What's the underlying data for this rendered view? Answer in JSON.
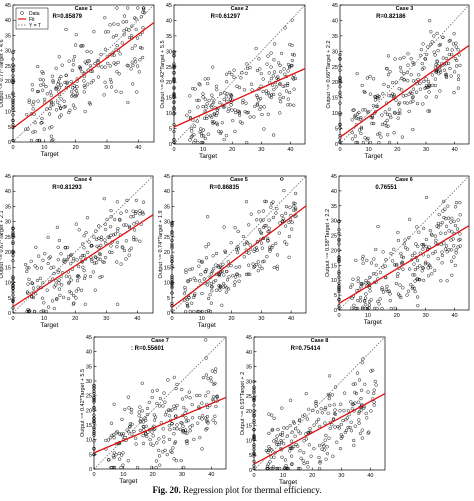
{
  "figure": {
    "caption_label": "Fig. 20.",
    "caption_text": "Regression plot for thermal efficiency.",
    "colors": {
      "data": "#000000",
      "fit": "#e01010",
      "identity": "#555555"
    }
  },
  "chart_data": [
    {
      "type": "scatter",
      "title": "Case 1",
      "r_label": "R=0.85879",
      "xlabel": "Target",
      "ylabel": "Output ~= 0.77*Target + 4.6",
      "xlim": [
        0,
        45
      ],
      "ylim": [
        0,
        45
      ],
      "xticks": [
        "0",
        "10",
        "20",
        "30",
        "40"
      ],
      "yticks": [
        "0",
        "5",
        "10",
        "15",
        "20",
        "25",
        "30",
        "35",
        "40",
        "45"
      ],
      "fit": {
        "slope": 0.77,
        "intercept": 4.6
      },
      "legend": {
        "position": "top-left",
        "entries": [
          "Data",
          "Fit",
          "Y = T"
        ]
      }
    },
    {
      "type": "scatter",
      "title": "Case 2",
      "r_label": "R=0.61297",
      "xlabel": "Target",
      "ylabel": "Output ~= 0.42*Target + 5.5",
      "xlim": [
        0,
        45
      ],
      "ylim": [
        0,
        45
      ],
      "xticks": [
        "0",
        "10",
        "20",
        "30",
        "40"
      ],
      "yticks": [
        "0",
        "5",
        "10",
        "15",
        "20",
        "25",
        "30",
        "35",
        "40",
        "45"
      ],
      "fit": {
        "slope": 0.42,
        "intercept": 5.5
      }
    },
    {
      "type": "scatter",
      "title": "Case 3",
      "r_label": "R=0.82186",
      "xlabel": "Target",
      "ylabel": "Output ~= 0.66*Target + 2.2",
      "xlim": [
        0,
        45
      ],
      "ylim": [
        0,
        45
      ],
      "xticks": [
        "0",
        "10",
        "20",
        "30",
        "40"
      ],
      "yticks": [
        "0",
        "5",
        "10",
        "15",
        "20",
        "25",
        "30",
        "35",
        "40",
        "45"
      ],
      "fit": {
        "slope": 0.66,
        "intercept": 2.2
      }
    },
    {
      "type": "scatter",
      "title": "Case 4",
      "r_label": "R=0.81293",
      "xlabel": "Target",
      "ylabel": "Output ~= 0.67*Target + 2.1",
      "xlim": [
        0,
        45
      ],
      "ylim": [
        0,
        45
      ],
      "xticks": [
        "0",
        "10",
        "20",
        "30",
        "40"
      ],
      "yticks": [
        "0",
        "5",
        "10",
        "15",
        "20",
        "25",
        "30",
        "35",
        "40",
        "45"
      ],
      "fit": {
        "slope": 0.67,
        "intercept": 2.1
      }
    },
    {
      "type": "scatter",
      "title": "Case 5",
      "r_label": "R=0.86835",
      "xlabel": "Target",
      "ylabel": "Output ~= 0.74*Target + 1.9",
      "xlim": [
        0,
        45
      ],
      "ylim": [
        0,
        45
      ],
      "xticks": [
        "0",
        "10",
        "20",
        "30",
        "40"
      ],
      "yticks": [
        "0",
        "5",
        "10",
        "15",
        "20",
        "25",
        "30",
        "35",
        "40",
        "45"
      ],
      "fit": {
        "slope": 0.74,
        "intercept": 1.9
      }
    },
    {
      "type": "scatter",
      "title": "Case 6",
      "r_label": "0.76551",
      "xlabel": "Target",
      "ylabel": "Output ~= 0.58*Target + 2.2",
      "xlim": [
        0,
        45
      ],
      "ylim": [
        0,
        45
      ],
      "xticks": [
        "0",
        "10",
        "20",
        "30",
        "40"
      ],
      "yticks": [
        "0",
        "5",
        "10",
        "15",
        "20",
        "25",
        "30",
        "35",
        "40",
        "45"
      ],
      "fit": {
        "slope": 0.58,
        "intercept": 2.2
      }
    },
    {
      "type": "scatter",
      "title": "Case 7",
      "r_label": ": R=0.55601",
      "xlabel": "Target",
      "ylabel": "Output ~= 0.42*Target + 5.5",
      "xlim": [
        0,
        45
      ],
      "ylim": [
        0,
        45
      ],
      "xticks": [
        "0",
        "10",
        "20",
        "30",
        "40"
      ],
      "yticks": [
        "0",
        "5",
        "10",
        "15",
        "20",
        "25",
        "30",
        "35",
        "40",
        "45"
      ],
      "fit": {
        "slope": 0.42,
        "intercept": 5.5
      }
    },
    {
      "type": "scatter",
      "title": "Case 8",
      "r_label": "R=0.75414",
      "xlabel": "Target",
      "ylabel": "Output ~= 0.53*Target + 2",
      "xlim": [
        0,
        45
      ],
      "ylim": [
        0,
        45
      ],
      "xticks": [
        "0",
        "10",
        "20",
        "30",
        "40"
      ],
      "yticks": [
        "0",
        "5",
        "10",
        "15",
        "20",
        "25",
        "30",
        "35",
        "40",
        "45"
      ],
      "fit": {
        "slope": 0.53,
        "intercept": 2
      }
    }
  ]
}
